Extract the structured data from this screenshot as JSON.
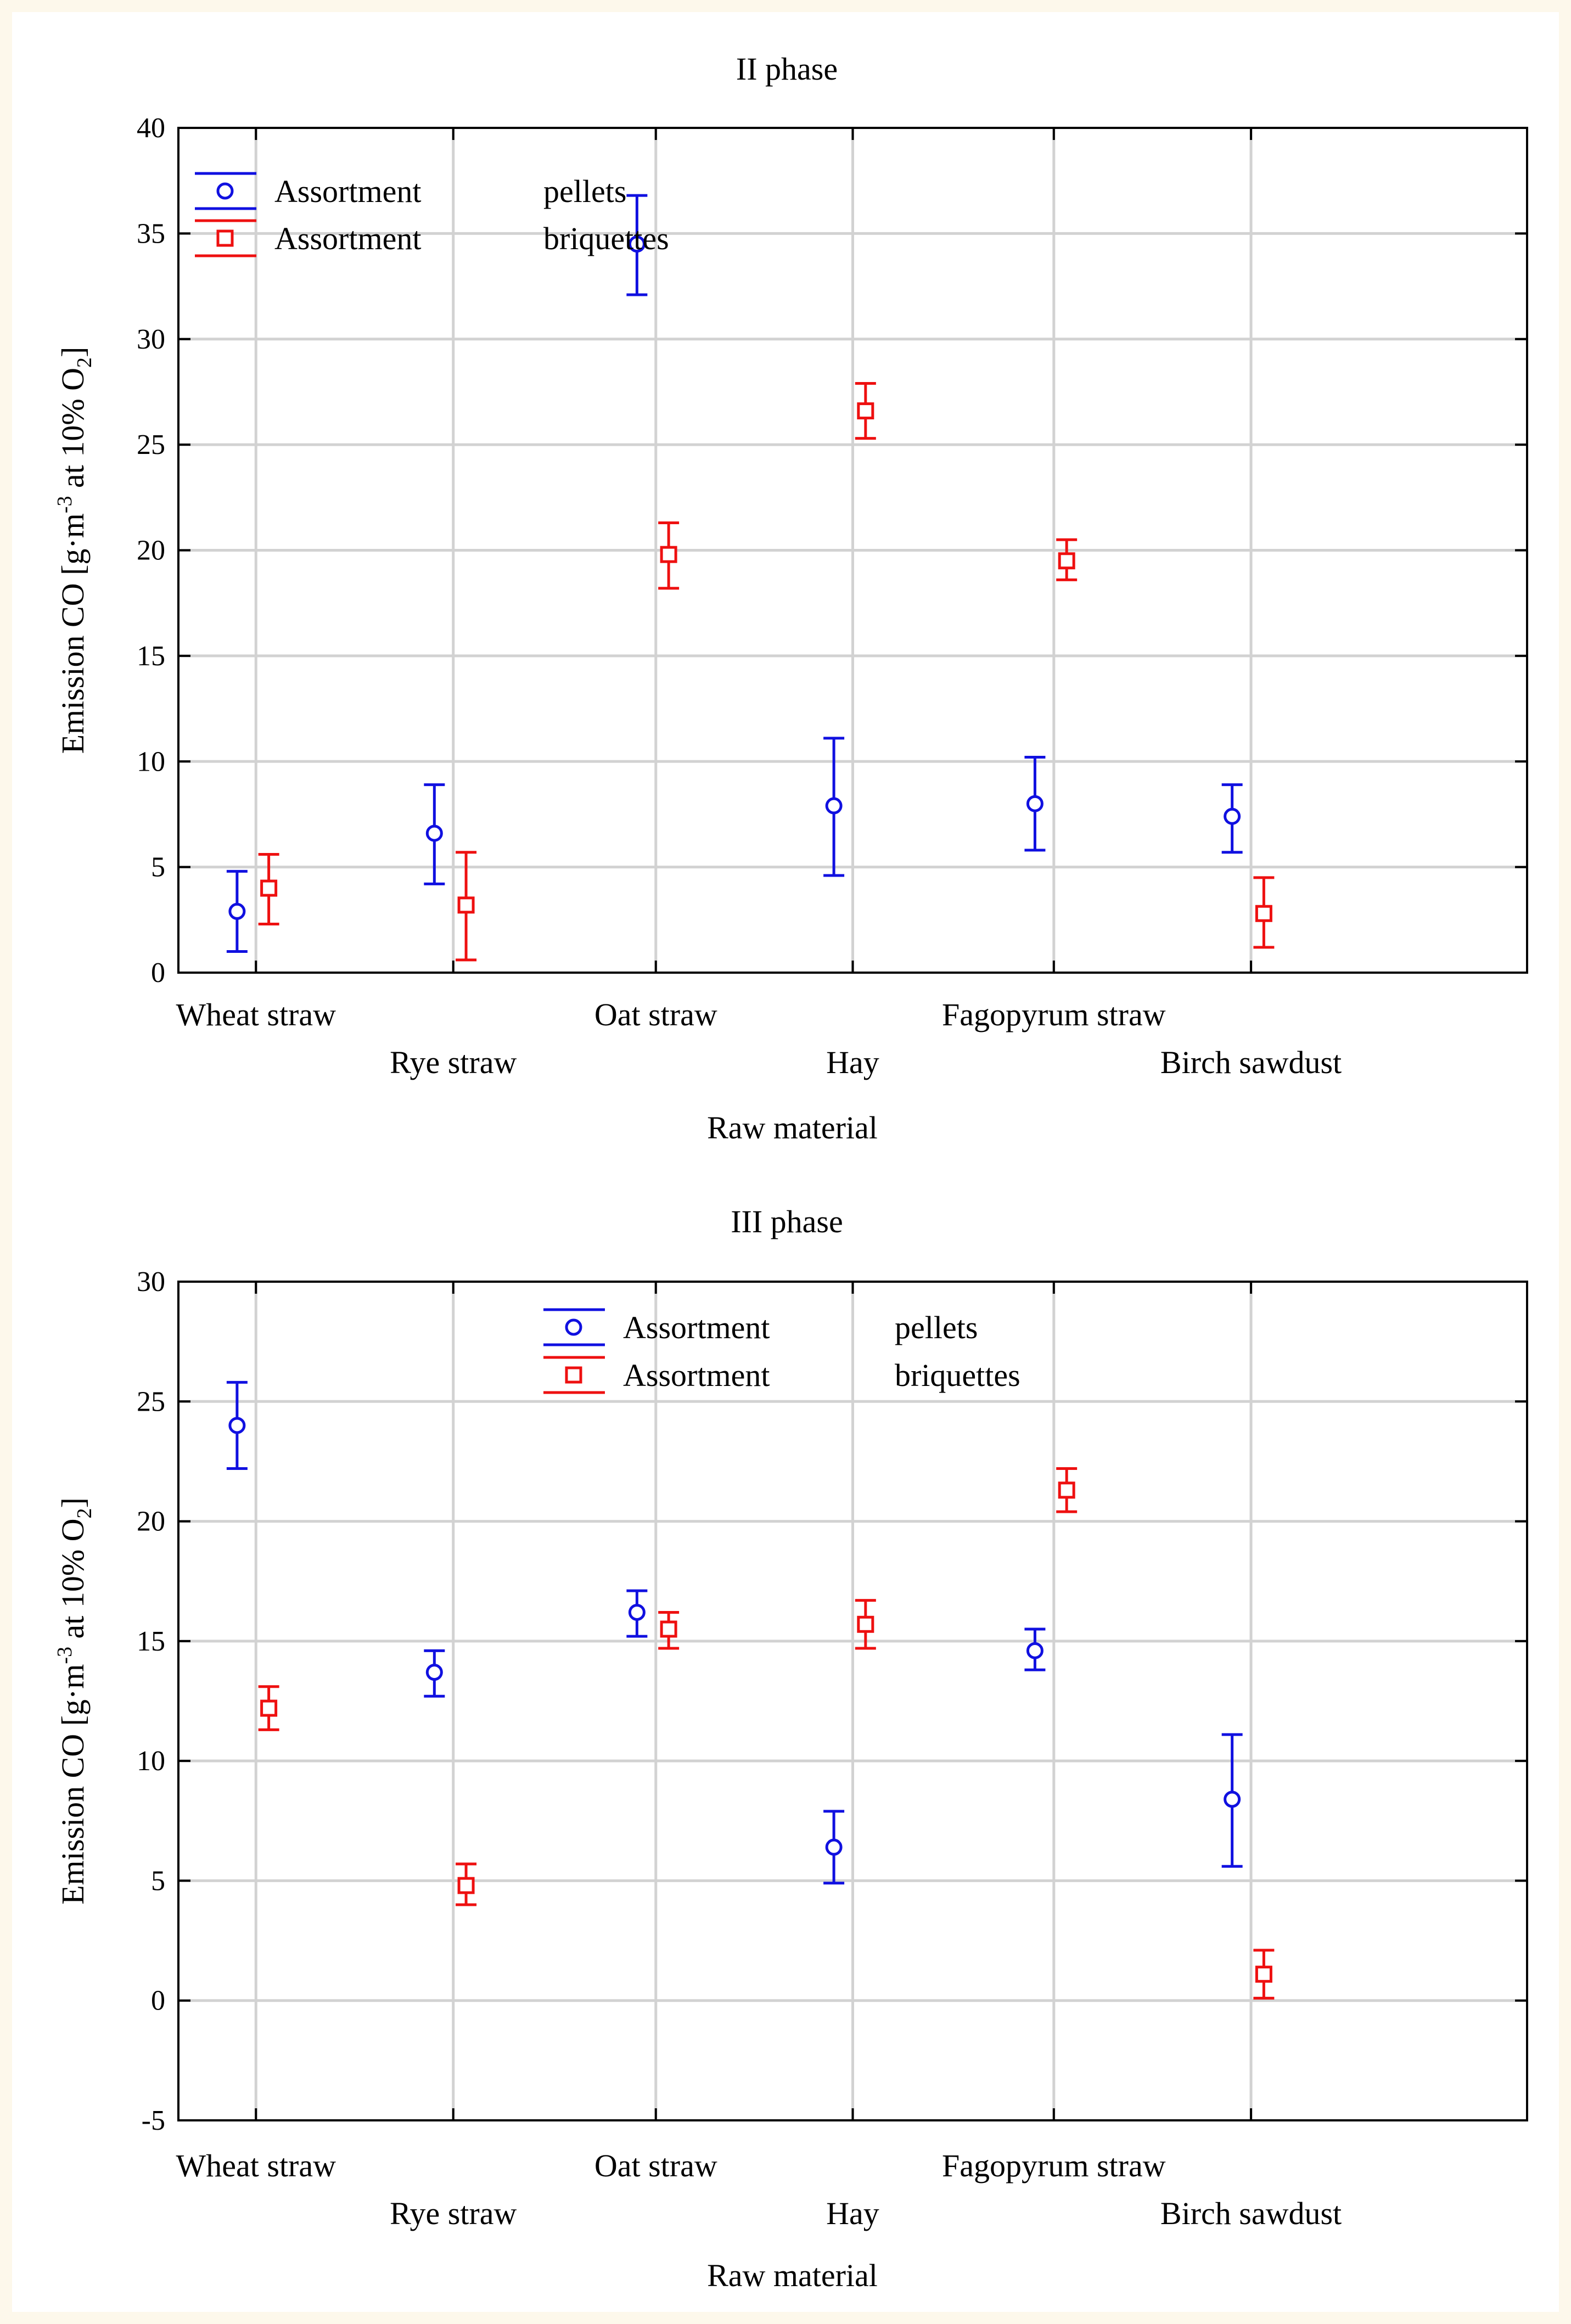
{
  "chart_data": [
    {
      "type": "scatter",
      "title": "II phase",
      "xlabel": "Raw material",
      "ylabel": "Emission CO [g·m",
      "ylabel_sup": "-3",
      "ylabel_mid": " at 10% O",
      "ylabel_sub": "2",
      "ylabel_end": "]",
      "ylim": [
        0,
        40
      ],
      "yticks": [
        0,
        5,
        10,
        15,
        20,
        25,
        30,
        35,
        40
      ],
      "categories": [
        "Wheat straw",
        "Rye straw",
        "Oat straw",
        "Hay",
        "Fagopyrum straw",
        "Birch sawdust"
      ],
      "grid": true,
      "legend_placement": "top-left",
      "series": [
        {
          "name": "Assortment pellets",
          "legend_a": "Assortment",
          "legend_b": "pellets",
          "marker": "circle",
          "color": "#1010e0",
          "values": [
            2.9,
            6.6,
            34.5,
            7.9,
            8.0,
            7.4
          ],
          "lower": [
            1.0,
            4.2,
            32.1,
            4.6,
            5.8,
            5.7
          ],
          "upper": [
            4.8,
            8.9,
            36.8,
            11.1,
            10.2,
            8.9
          ]
        },
        {
          "name": "Assortment briquettes",
          "legend_a": "Assortment",
          "legend_b": "briquettes",
          "marker": "square",
          "color": "#ee1010",
          "values": [
            4.0,
            3.2,
            19.8,
            26.6,
            19.5,
            2.8
          ],
          "lower": [
            2.3,
            0.6,
            18.2,
            25.3,
            18.6,
            1.2
          ],
          "upper": [
            5.6,
            5.7,
            21.3,
            27.9,
            20.5,
            4.5
          ]
        }
      ]
    },
    {
      "type": "scatter",
      "title": "III phase",
      "xlabel": "Raw material",
      "ylabel": "Emission CO [g·m",
      "ylabel_sup": "-3",
      "ylabel_mid": " at 10% O",
      "ylabel_sub": "2",
      "ylabel_end": "]",
      "ylim": [
        -5,
        30
      ],
      "yticks": [
        -5,
        0,
        5,
        10,
        15,
        20,
        25,
        30
      ],
      "categories": [
        "Wheat straw",
        "Rye straw",
        "Oat straw",
        "Hay",
        "Fagopyrum straw",
        "Birch sawdust"
      ],
      "grid": true,
      "legend_placement": "top-center",
      "series": [
        {
          "name": "Assortment pellets",
          "legend_a": "Assortment",
          "legend_b": "pellets",
          "marker": "circle",
          "color": "#1010e0",
          "values": [
            24.0,
            13.7,
            16.2,
            6.4,
            14.6,
            8.4
          ],
          "lower": [
            22.2,
            12.7,
            15.2,
            4.9,
            13.8,
            5.6
          ],
          "upper": [
            25.8,
            14.6,
            17.1,
            7.9,
            15.5,
            11.1
          ]
        },
        {
          "name": "Assortment briquettes",
          "legend_a": "Assortment",
          "legend_b": "briquettes",
          "marker": "square",
          "color": "#ee1010",
          "values": [
            12.2,
            4.8,
            15.5,
            15.7,
            21.3,
            1.1
          ],
          "lower": [
            11.3,
            4.0,
            14.7,
            14.7,
            20.4,
            0.1
          ],
          "upper": [
            13.1,
            5.7,
            16.2,
            16.7,
            22.2,
            2.1
          ]
        }
      ]
    }
  ]
}
